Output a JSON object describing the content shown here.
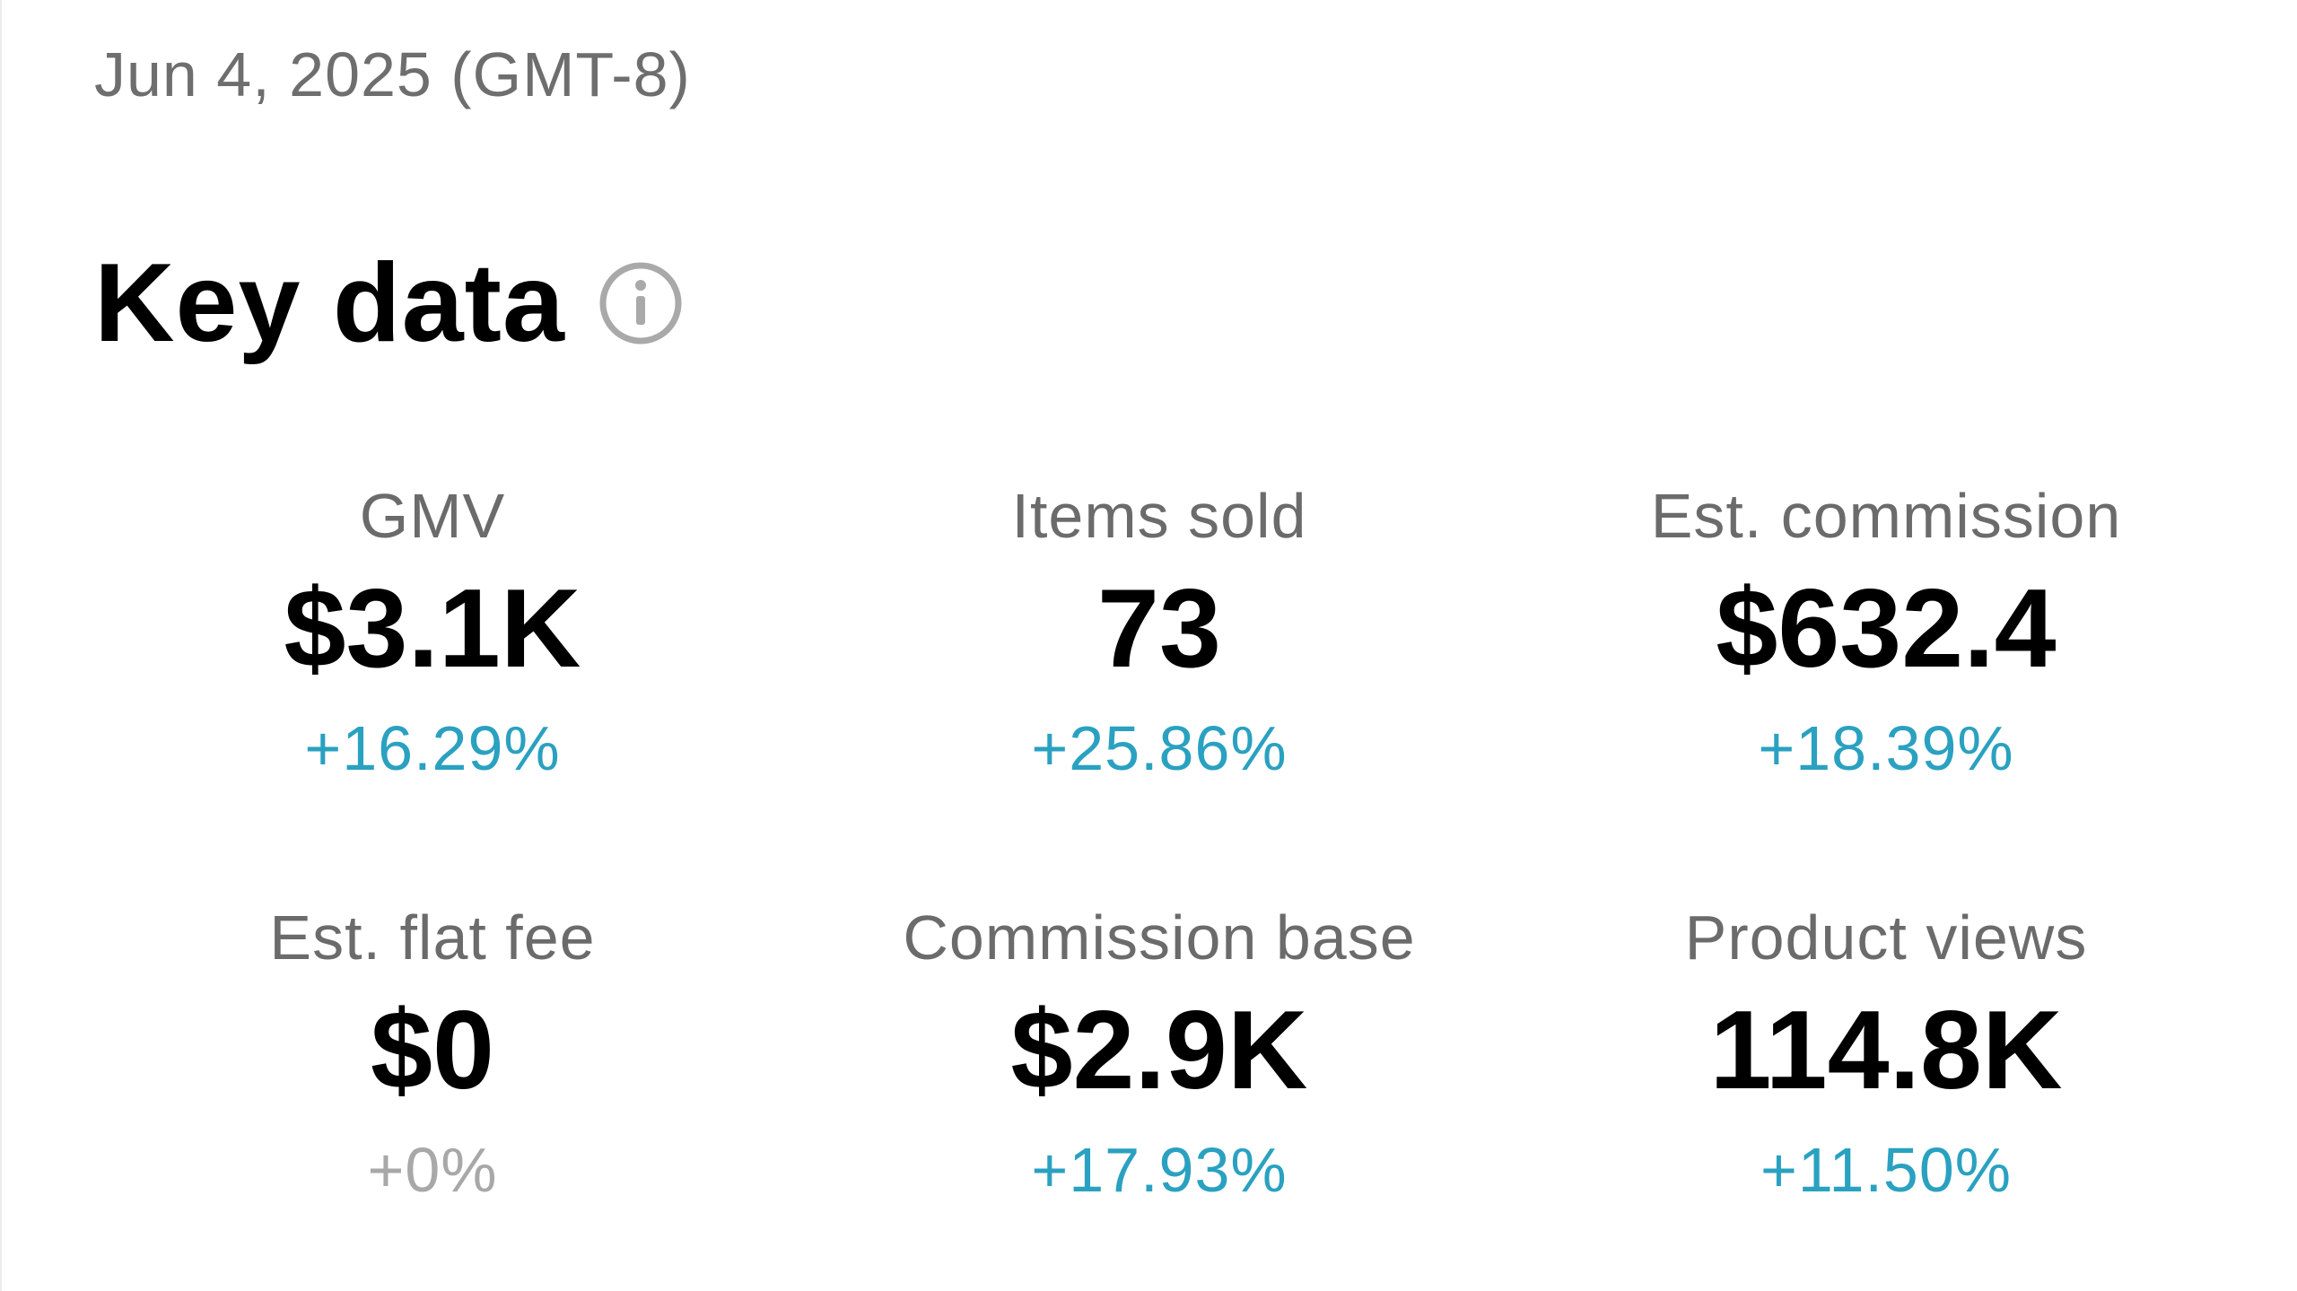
{
  "header": {
    "date": "Jun 4, 2025 (GMT-8)",
    "title": "Key data",
    "info_icon": "info-circle-icon"
  },
  "colors": {
    "positive": "#2aa1c0",
    "neutral": "#a8a8a8",
    "label": "#6b6b6b",
    "value": "#000000"
  },
  "metrics": [
    {
      "label": "GMV",
      "value": "$3.1K",
      "change": "+16.29%",
      "trend": "positive"
    },
    {
      "label": "Items sold",
      "value": "73",
      "change": "+25.86%",
      "trend": "positive"
    },
    {
      "label": "Est. commission",
      "value": "$632.4",
      "change": "+18.39%",
      "trend": "positive"
    },
    {
      "label": "Est. flat fee",
      "value": "$0",
      "change": "+0%",
      "trend": "neutral"
    },
    {
      "label": "Commission base",
      "value": "$2.9K",
      "change": "+17.93%",
      "trend": "positive"
    },
    {
      "label": "Product views",
      "value": "114.8K",
      "change": "+11.50%",
      "trend": "positive"
    }
  ]
}
